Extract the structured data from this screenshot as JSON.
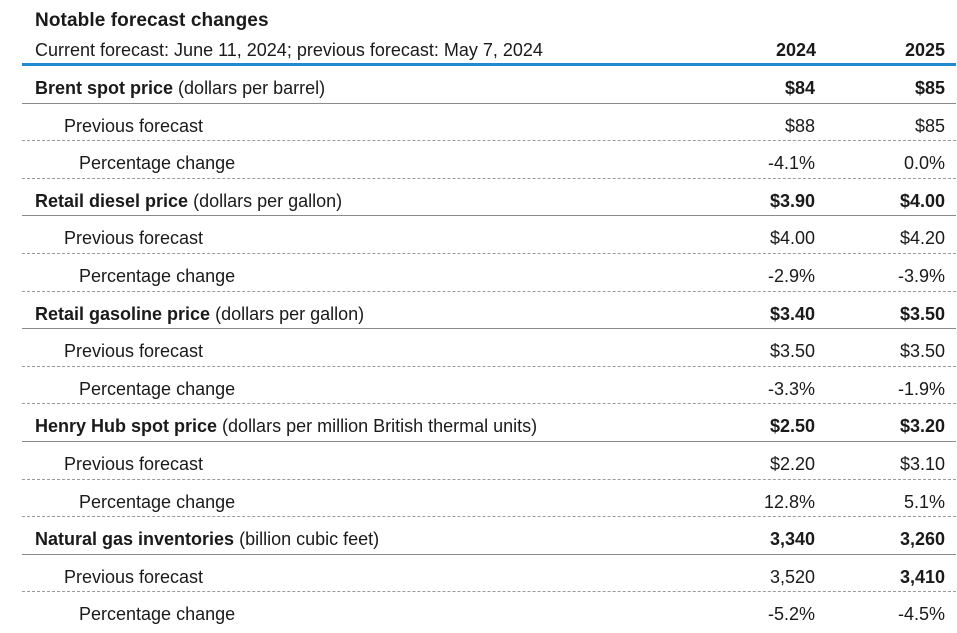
{
  "title": "Notable forecast changes",
  "subtitle": "Current forecast: June 11, 2024; previous forecast: May 7, 2024",
  "columns": [
    "2024",
    "2025"
  ],
  "accent_color": "#1f8ad0",
  "groups": [
    {
      "name": "Brent spot price",
      "unit": "(dollars per barrel)",
      "current": [
        "$84",
        "$85"
      ],
      "previous_label": "Previous forecast",
      "previous": [
        "$88",
        "$85"
      ],
      "change_label": "Percentage change",
      "change": [
        "-4.1%",
        "0.0%"
      ]
    },
    {
      "name": "Retail diesel price",
      "unit": "(dollars per gallon)",
      "current": [
        "$3.90",
        "$4.00"
      ],
      "previous_label": "Previous forecast",
      "previous": [
        "$4.00",
        "$4.20"
      ],
      "change_label": "Percentage change",
      "change": [
        "-2.9%",
        "-3.9%"
      ]
    },
    {
      "name": "Retail gasoline price",
      "unit": "(dollars per gallon)",
      "current": [
        "$3.40",
        "$3.50"
      ],
      "previous_label": "Previous forecast",
      "previous": [
        "$3.50",
        "$3.50"
      ],
      "change_label": "Percentage change",
      "change": [
        "-3.3%",
        "-1.9%"
      ]
    },
    {
      "name": "Henry Hub spot price",
      "unit": "(dollars per million British thermal units)",
      "current": [
        "$2.50",
        "$3.20"
      ],
      "previous_label": "Previous forecast",
      "previous": [
        "$2.20",
        "$3.10"
      ],
      "change_label": "Percentage change",
      "change": [
        "12.8%",
        "5.1%"
      ]
    },
    {
      "name": "Natural gas inventories",
      "unit": "(billion cubic feet)",
      "current": [
        "3,340",
        "3,260"
      ],
      "previous_label": "Previous forecast",
      "previous": [
        "3,520",
        "3,410"
      ],
      "change_label": "Percentage change",
      "change": [
        "-5.2%",
        "-4.5%"
      ]
    }
  ]
}
